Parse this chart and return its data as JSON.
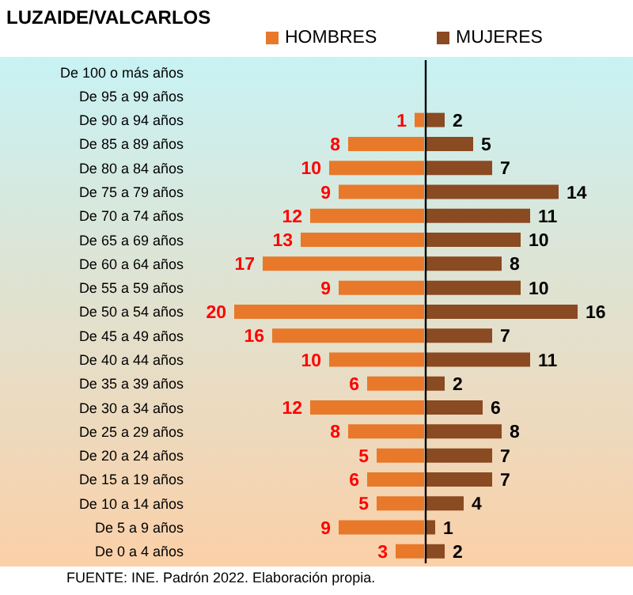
{
  "chart_data": [
    {
      "type": "bar",
      "orientation": "horizontal",
      "title": "LUZAIDE/VALCARLOS",
      "categories": [
        "De 100 o más años",
        "De 95 a 99 años",
        "De 90 a 94 años",
        "De 85 a 89 años",
        "De 80 a 84 años",
        "De 75 a 79 años",
        "De 70 a 74 años",
        "De 65 a 69 años",
        "De 60 a 64 años",
        "De 55 a 59 años",
        "De 50 a 54 años",
        "De 45 a 49 años",
        "De 40 a 44 años",
        "De 35 a 39 años",
        "De 30 a 34 años",
        "De 25 a 29 años",
        "De 20 a 24 años",
        "De 15 a 19 años",
        "De 10 a 14 años",
        "De 5 a 9 años",
        "De 0 a 4 años"
      ],
      "series": [
        {
          "name": "HOMBRES",
          "color": "#e8792a",
          "values": [
            null,
            null,
            1,
            8,
            10,
            9,
            12,
            13,
            17,
            9,
            20,
            16,
            10,
            6,
            12,
            8,
            5,
            6,
            5,
            9,
            3
          ]
        }
      ],
      "data_labels": true,
      "legend": "top",
      "annotations": [
        "FUENTE: INE. Padrón 2022. Elaboración propia."
      ]
    },
    {
      "type": "bar",
      "orientation": "horizontal",
      "categories": [
        null,
        null,
        null,
        null,
        null,
        null,
        null,
        null,
        null,
        null,
        null,
        null,
        null,
        null,
        null,
        null,
        null,
        null,
        null,
        null,
        null
      ],
      "series": [
        {
          "name": "MUJERES",
          "color": "#8a4a22",
          "values": [
            null,
            null,
            2,
            5,
            7,
            14,
            11,
            10,
            8,
            10,
            16,
            7,
            11,
            2,
            6,
            8,
            7,
            7,
            4,
            1,
            2
          ]
        }
      ],
      "data_labels": true,
      "legend": "top",
      "tick_labels": false
    }
  ]
}
